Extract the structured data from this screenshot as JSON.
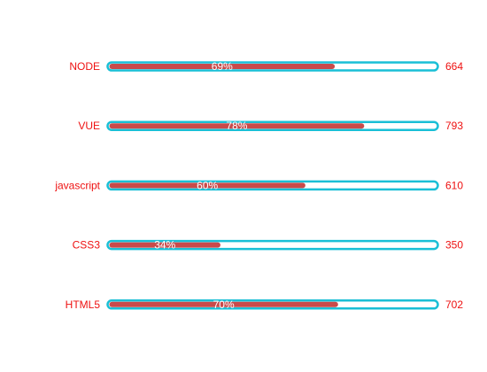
{
  "chart_data": {
    "type": "bar",
    "orientation": "horizontal",
    "categories": [
      "NODE",
      "VUE",
      "javascript",
      "CSS3",
      "HTML5"
    ],
    "values": [
      664,
      793,
      610,
      350,
      702
    ],
    "percent_labels": [
      "69%",
      "78%",
      "60%",
      "34%",
      "70%"
    ],
    "percents": [
      69,
      78,
      60,
      34,
      70
    ],
    "grid": false,
    "legend": "none"
  },
  "colors": {
    "label_text": "#ee1111",
    "bar_fill": "#c94a4a",
    "track_border": "#19bfd6",
    "track_fill": "#ffffff",
    "percent_text": "#ffffff"
  }
}
